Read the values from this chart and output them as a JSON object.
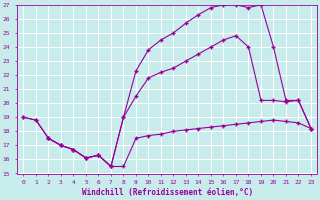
{
  "xlabel": "Windchill (Refroidissement éolien,°C)",
  "background_color": "#c8ecec",
  "line_color": "#990099",
  "grid_color": "#ffffff",
  "xlim": [
    -0.5,
    23.5
  ],
  "ylim": [
    15,
    27
  ],
  "xticks": [
    0,
    1,
    2,
    3,
    4,
    5,
    6,
    7,
    8,
    9,
    10,
    11,
    12,
    13,
    14,
    15,
    16,
    17,
    18,
    19,
    20,
    21,
    22,
    23
  ],
  "yticks": [
    15,
    16,
    17,
    18,
    19,
    20,
    21,
    22,
    23,
    24,
    25,
    26,
    27
  ],
  "series": [
    {
      "x": [
        0,
        1,
        2,
        3,
        4,
        5,
        6,
        7,
        8,
        9,
        10,
        11,
        12,
        13,
        14,
        15,
        16,
        17,
        18,
        19,
        20,
        21,
        22,
        23
      ],
      "y": [
        19.0,
        18.8,
        17.5,
        17.0,
        16.7,
        16.1,
        16.3,
        15.5,
        15.5,
        17.5,
        17.7,
        17.8,
        18.0,
        18.1,
        18.2,
        18.3,
        18.4,
        18.5,
        18.6,
        18.7,
        18.8,
        18.7,
        18.6,
        18.2
      ]
    },
    {
      "x": [
        0,
        1,
        2,
        3,
        4,
        5,
        6,
        7,
        8,
        9,
        10,
        11,
        12,
        13,
        14,
        15,
        16,
        17,
        18,
        19,
        20,
        21,
        22,
        23
      ],
      "y": [
        19.0,
        18.8,
        17.5,
        17.0,
        16.7,
        16.1,
        16.3,
        15.5,
        19.0,
        20.5,
        21.8,
        22.2,
        22.5,
        23.0,
        23.5,
        24.0,
        24.5,
        24.8,
        24.0,
        20.2,
        20.2,
        20.1,
        20.2,
        18.2
      ]
    },
    {
      "x": [
        2,
        3,
        4,
        5,
        6,
        7,
        8,
        9,
        10,
        11,
        12,
        13,
        14,
        15,
        16,
        17,
        18,
        19,
        20,
        21,
        22,
        23
      ],
      "y": [
        17.5,
        17.0,
        16.7,
        16.1,
        16.3,
        15.5,
        19.0,
        22.3,
        23.8,
        24.5,
        25.0,
        25.7,
        26.3,
        26.8,
        27.0,
        27.0,
        26.8,
        27.0,
        24.0,
        20.2,
        20.2,
        18.2
      ]
    }
  ]
}
